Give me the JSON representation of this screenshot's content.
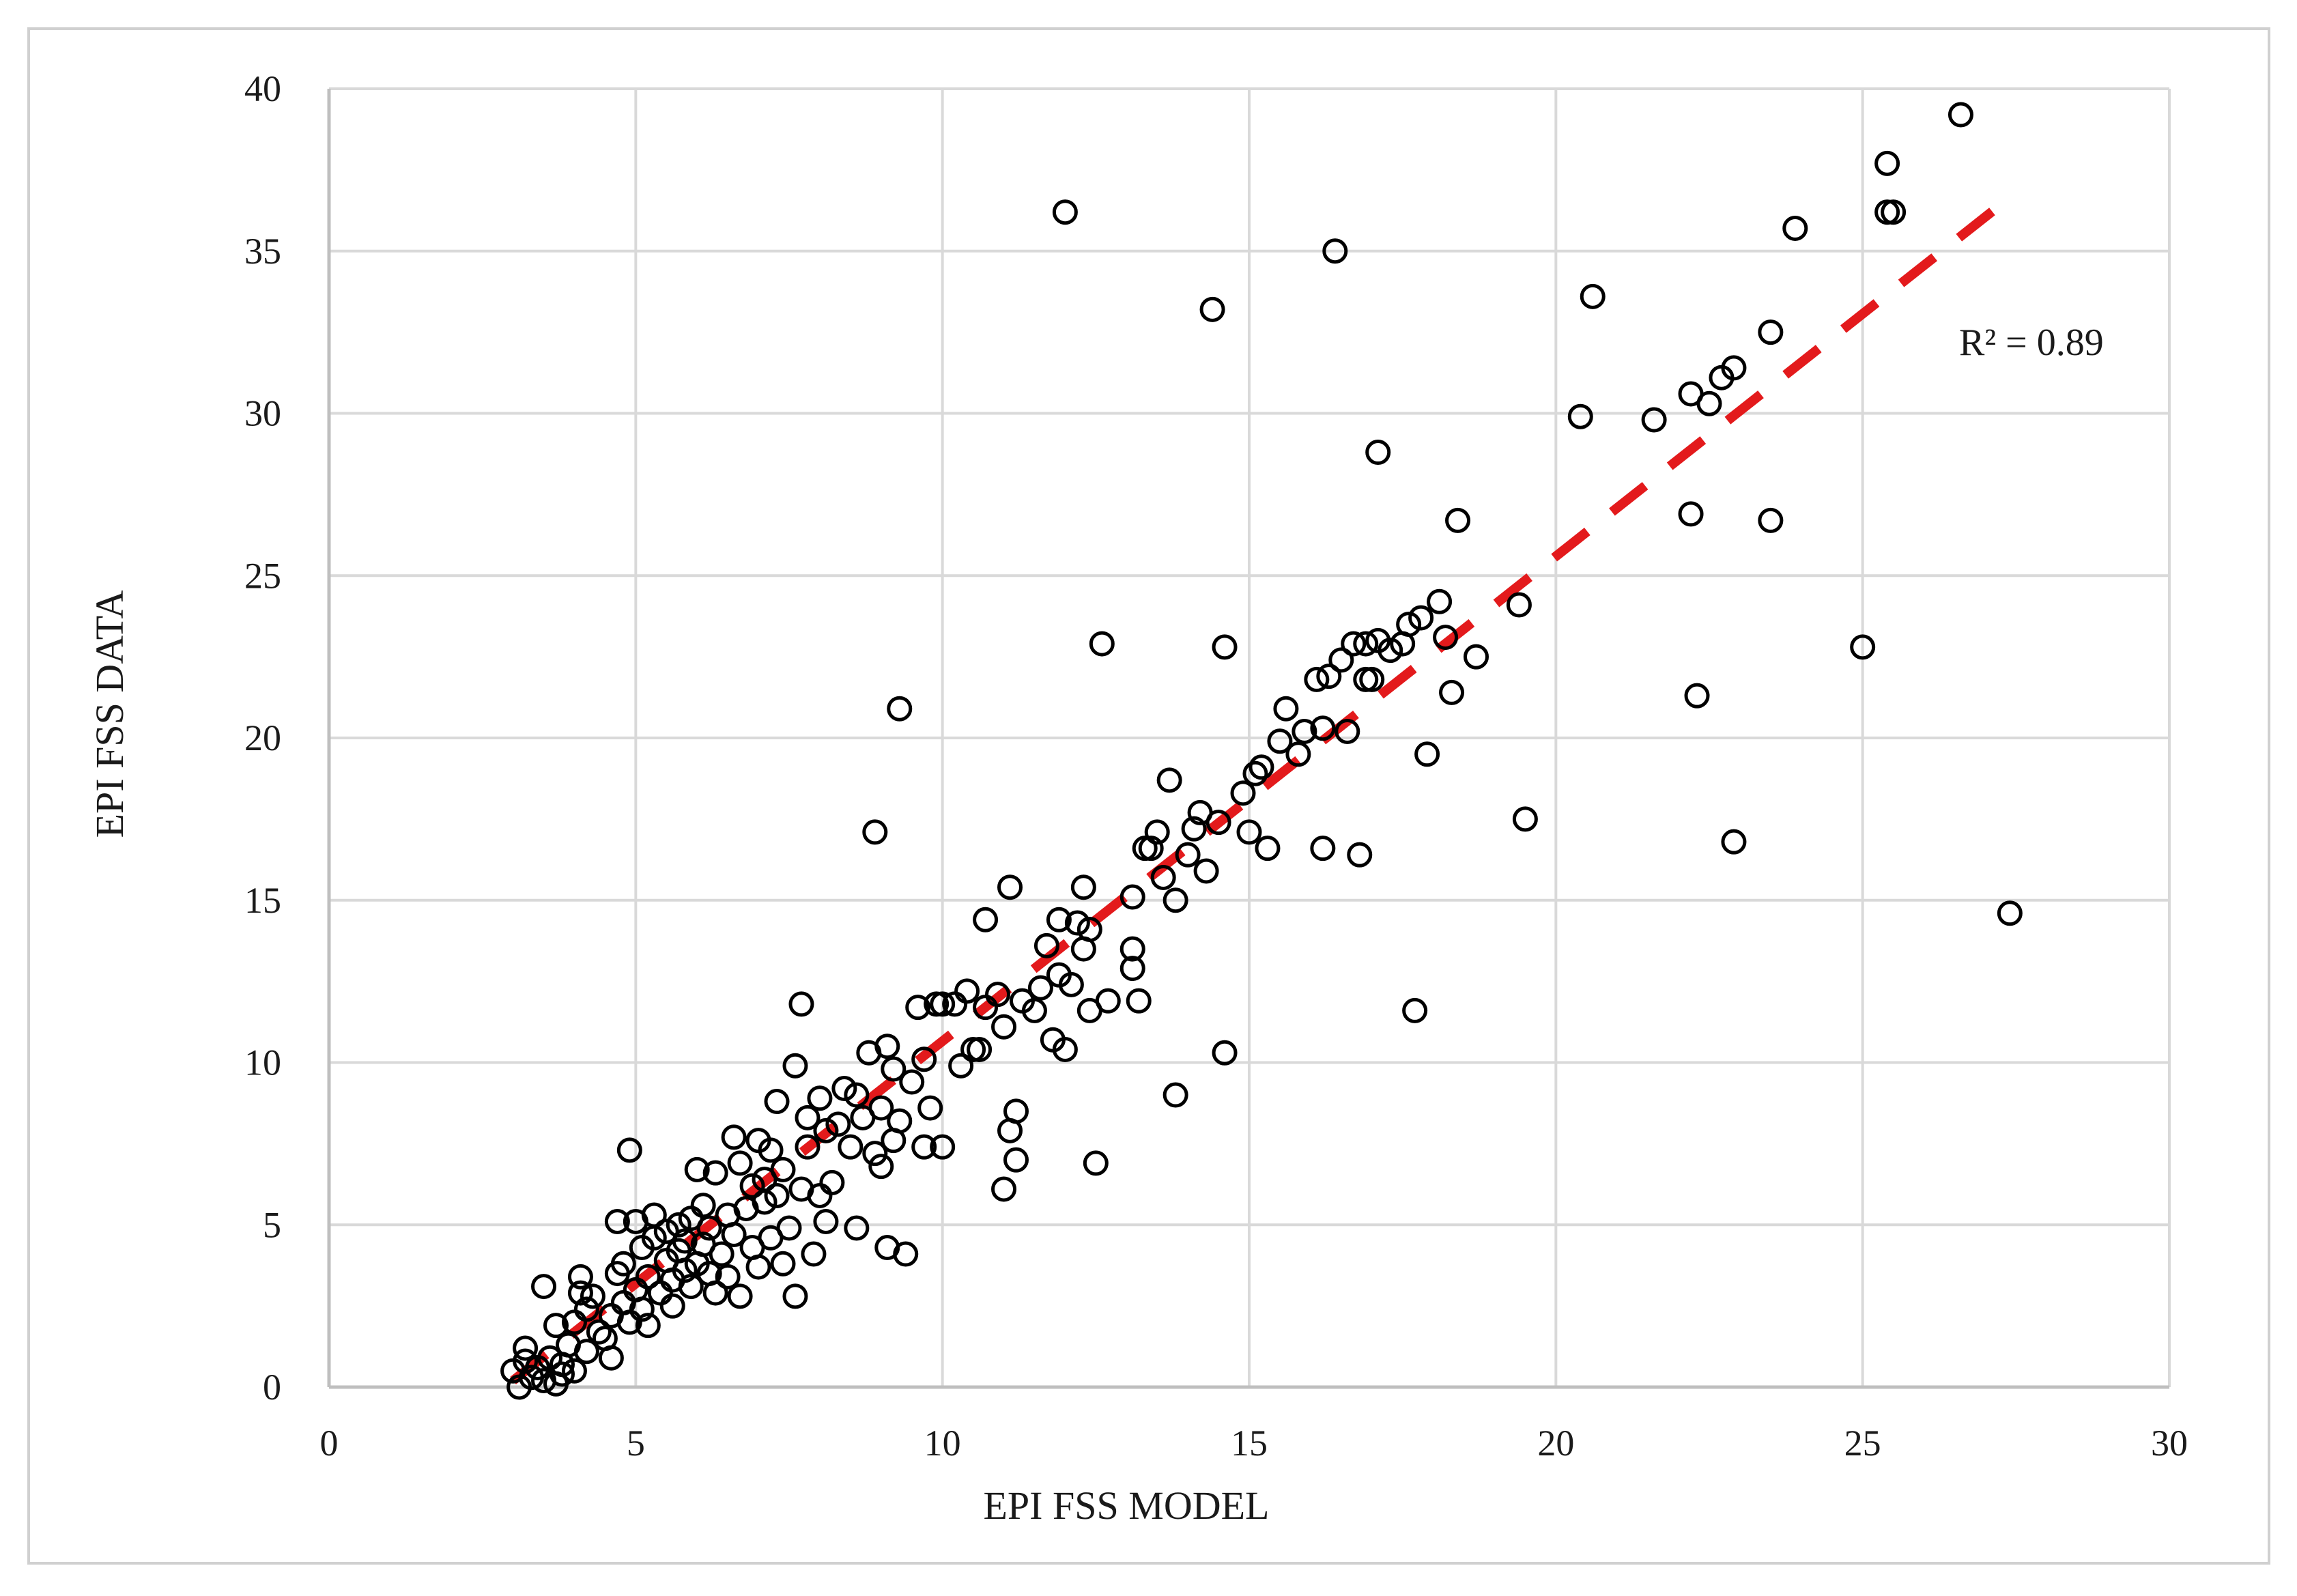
{
  "chart_data": {
    "type": "scatter",
    "title": "",
    "xlabel": "EPI FSS MODEL",
    "ylabel": "EPI FSS DATA",
    "xlim": [
      0,
      30
    ],
    "ylim": [
      0,
      40
    ],
    "xticks": [
      0,
      5,
      10,
      15,
      20,
      25,
      30
    ],
    "yticks": [
      0,
      5,
      10,
      15,
      20,
      25,
      30,
      35,
      40
    ],
    "grid": true,
    "legend": "none",
    "marker": "open-circle",
    "marker_color": "#000000",
    "trendline": {
      "type": "linear",
      "style": "dashed",
      "color": "#e31a1c",
      "x": [
        3.0,
        27.5
      ],
      "y": [
        0.2,
        36.8
      ]
    },
    "annotation": "R² = 0.89",
    "points": [
      [
        3.0,
        0.5
      ],
      [
        3.1,
        0.0
      ],
      [
        3.2,
        0.8
      ],
      [
        3.2,
        1.2
      ],
      [
        3.3,
        0.3
      ],
      [
        3.4,
        0.6
      ],
      [
        3.5,
        0.2
      ],
      [
        3.5,
        3.1
      ],
      [
        3.6,
        0.9
      ],
      [
        3.7,
        0.1
      ],
      [
        3.7,
        1.9
      ],
      [
        3.8,
        0.7
      ],
      [
        3.8,
        0.4
      ],
      [
        3.9,
        1.3
      ],
      [
        4.0,
        0.5
      ],
      [
        4.0,
        2.0
      ],
      [
        4.1,
        2.9
      ],
      [
        4.1,
        3.4
      ],
      [
        4.2,
        1.1
      ],
      [
        4.2,
        2.4
      ],
      [
        4.3,
        2.8
      ],
      [
        4.4,
        1.7
      ],
      [
        4.5,
        1.5
      ],
      [
        4.6,
        2.2
      ],
      [
        4.6,
        0.9
      ],
      [
        4.7,
        3.5
      ],
      [
        4.7,
        5.1
      ],
      [
        4.8,
        3.8
      ],
      [
        4.8,
        2.6
      ],
      [
        4.9,
        2.0
      ],
      [
        4.9,
        7.3
      ],
      [
        5.0,
        3.0
      ],
      [
        5.0,
        5.1
      ],
      [
        5.1,
        2.4
      ],
      [
        5.1,
        4.3
      ],
      [
        5.2,
        3.4
      ],
      [
        5.2,
        1.9
      ],
      [
        5.3,
        4.6
      ],
      [
        5.3,
        5.3
      ],
      [
        5.4,
        2.9
      ],
      [
        5.5,
        3.9
      ],
      [
        5.5,
        4.8
      ],
      [
        5.6,
        2.5
      ],
      [
        5.6,
        3.3
      ],
      [
        5.7,
        4.2
      ],
      [
        5.7,
        5.0
      ],
      [
        5.8,
        3.6
      ],
      [
        5.8,
        4.5
      ],
      [
        5.9,
        3.1
      ],
      [
        5.9,
        5.2
      ],
      [
        6.0,
        3.8
      ],
      [
        6.0,
        6.7
      ],
      [
        6.1,
        4.4
      ],
      [
        6.1,
        5.6
      ],
      [
        6.2,
        4.9
      ],
      [
        6.2,
        3.5
      ],
      [
        6.3,
        2.9
      ],
      [
        6.3,
        6.6
      ],
      [
        6.4,
        4.1
      ],
      [
        6.5,
        5.3
      ],
      [
        6.5,
        3.4
      ],
      [
        6.6,
        7.7
      ],
      [
        6.6,
        4.7
      ],
      [
        6.7,
        6.9
      ],
      [
        6.7,
        2.8
      ],
      [
        6.8,
        5.5
      ],
      [
        6.9,
        6.2
      ],
      [
        6.9,
        4.3
      ],
      [
        7.0,
        7.6
      ],
      [
        7.0,
        3.7
      ],
      [
        7.1,
        6.4
      ],
      [
        7.1,
        5.7
      ],
      [
        7.2,
        4.6
      ],
      [
        7.2,
        7.3
      ],
      [
        7.3,
        5.9
      ],
      [
        7.3,
        8.8
      ],
      [
        7.4,
        3.8
      ],
      [
        7.4,
        6.7
      ],
      [
        7.5,
        4.9
      ],
      [
        7.6,
        2.8
      ],
      [
        7.6,
        9.9
      ],
      [
        7.7,
        11.8
      ],
      [
        7.7,
        6.1
      ],
      [
        7.8,
        7.4
      ],
      [
        7.8,
        8.3
      ],
      [
        7.9,
        4.1
      ],
      [
        8.0,
        8.9
      ],
      [
        8.0,
        5.9
      ],
      [
        8.1,
        7.9
      ],
      [
        8.1,
        5.1
      ],
      [
        8.2,
        6.3
      ],
      [
        8.3,
        8.1
      ],
      [
        8.4,
        9.2
      ],
      [
        8.5,
        7.4
      ],
      [
        8.6,
        4.9
      ],
      [
        8.6,
        9.0
      ],
      [
        8.7,
        8.3
      ],
      [
        8.8,
        10.3
      ],
      [
        8.9,
        7.2
      ],
      [
        8.9,
        17.1
      ],
      [
        9.0,
        8.6
      ],
      [
        9.0,
        6.8
      ],
      [
        9.1,
        10.5
      ],
      [
        9.1,
        4.3
      ],
      [
        9.2,
        9.8
      ],
      [
        9.2,
        7.6
      ],
      [
        9.3,
        20.9
      ],
      [
        9.3,
        8.2
      ],
      [
        9.4,
        4.1
      ],
      [
        9.5,
        9.4
      ],
      [
        9.6,
        11.7
      ],
      [
        9.7,
        7.4
      ],
      [
        9.7,
        10.1
      ],
      [
        9.8,
        8.6
      ],
      [
        9.9,
        11.8
      ],
      [
        10.0,
        7.4
      ],
      [
        10.0,
        11.8
      ],
      [
        10.2,
        11.8
      ],
      [
        10.3,
        9.9
      ],
      [
        10.4,
        12.2
      ],
      [
        10.5,
        10.4
      ],
      [
        10.6,
        10.4
      ],
      [
        10.7,
        11.7
      ],
      [
        10.7,
        14.4
      ],
      [
        10.9,
        12.1
      ],
      [
        11.0,
        6.1
      ],
      [
        11.0,
        11.1
      ],
      [
        11.1,
        15.4
      ],
      [
        11.1,
        7.9
      ],
      [
        11.2,
        7.0
      ],
      [
        11.2,
        8.5
      ],
      [
        11.3,
        11.9
      ],
      [
        11.5,
        11.6
      ],
      [
        11.6,
        12.3
      ],
      [
        11.7,
        13.6
      ],
      [
        11.8,
        10.7
      ],
      [
        11.9,
        14.4
      ],
      [
        11.9,
        12.7
      ],
      [
        12.0,
        36.2
      ],
      [
        12.0,
        10.4
      ],
      [
        12.1,
        12.4
      ],
      [
        12.2,
        14.3
      ],
      [
        12.3,
        13.5
      ],
      [
        12.3,
        15.4
      ],
      [
        12.4,
        11.6
      ],
      [
        12.4,
        14.1
      ],
      [
        12.5,
        6.9
      ],
      [
        12.6,
        22.9
      ],
      [
        12.7,
        11.9
      ],
      [
        13.1,
        15.1
      ],
      [
        13.1,
        13.5
      ],
      [
        13.1,
        12.9
      ],
      [
        13.2,
        11.9
      ],
      [
        13.3,
        16.6
      ],
      [
        13.4,
        16.6
      ],
      [
        13.5,
        17.1
      ],
      [
        13.6,
        15.7
      ],
      [
        13.7,
        18.7
      ],
      [
        13.8,
        9.0
      ],
      [
        13.8,
        15.0
      ],
      [
        14.0,
        16.4
      ],
      [
        14.1,
        17.2
      ],
      [
        14.2,
        17.7
      ],
      [
        14.3,
        15.9
      ],
      [
        14.4,
        33.2
      ],
      [
        14.5,
        17.4
      ],
      [
        14.6,
        22.8
      ],
      [
        14.6,
        10.3
      ],
      [
        14.9,
        18.3
      ],
      [
        15.0,
        17.1
      ],
      [
        15.1,
        18.9
      ],
      [
        15.2,
        19.1
      ],
      [
        15.3,
        16.6
      ],
      [
        15.5,
        19.9
      ],
      [
        15.6,
        20.9
      ],
      [
        15.8,
        19.5
      ],
      [
        15.9,
        20.2
      ],
      [
        16.1,
        21.8
      ],
      [
        16.2,
        16.6
      ],
      [
        16.2,
        20.3
      ],
      [
        16.3,
        21.9
      ],
      [
        16.4,
        35.0
      ],
      [
        16.5,
        22.4
      ],
      [
        16.6,
        20.2
      ],
      [
        16.7,
        22.9
      ],
      [
        16.8,
        16.4
      ],
      [
        16.9,
        21.8
      ],
      [
        16.9,
        22.9
      ],
      [
        17.0,
        21.8
      ],
      [
        17.1,
        28.8
      ],
      [
        17.1,
        23.0
      ],
      [
        17.3,
        22.7
      ],
      [
        17.5,
        22.9
      ],
      [
        17.6,
        23.5
      ],
      [
        17.7,
        11.6
      ],
      [
        17.8,
        23.7
      ],
      [
        17.9,
        19.5
      ],
      [
        18.1,
        24.2
      ],
      [
        18.2,
        23.1
      ],
      [
        18.3,
        21.4
      ],
      [
        18.4,
        26.7
      ],
      [
        18.7,
        22.5
      ],
      [
        19.4,
        24.1
      ],
      [
        19.5,
        17.5
      ],
      [
        20.4,
        29.9
      ],
      [
        20.6,
        33.6
      ],
      [
        21.6,
        29.8
      ],
      [
        22.2,
        30.6
      ],
      [
        22.2,
        26.9
      ],
      [
        22.3,
        21.3
      ],
      [
        22.5,
        30.3
      ],
      [
        22.7,
        31.1
      ],
      [
        22.9,
        16.8
      ],
      [
        22.9,
        31.4
      ],
      [
        23.5,
        32.5
      ],
      [
        23.5,
        26.7
      ],
      [
        23.9,
        35.7
      ],
      [
        25.0,
        22.8
      ],
      [
        25.4,
        37.7
      ],
      [
        25.4,
        36.2
      ],
      [
        25.5,
        36.2
      ],
      [
        26.6,
        39.2
      ],
      [
        27.4,
        14.6
      ]
    ]
  }
}
